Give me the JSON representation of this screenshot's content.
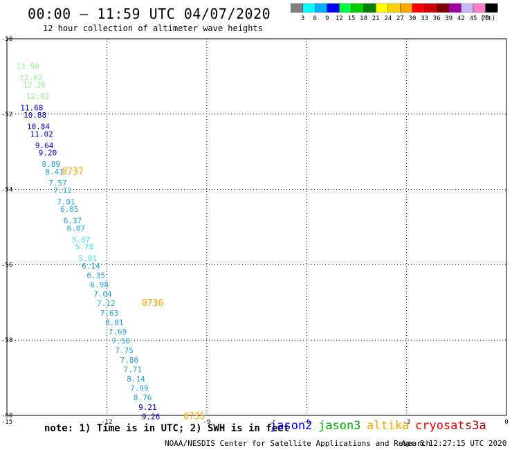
{
  "header": {
    "title": "00:00 – 11:59 UTC 04/07/2020",
    "subtitle": "12 hour collection of altimeter wave heights"
  },
  "colorbar": {
    "colors": [
      "#808080",
      "#00ffff",
      "#00b0ff",
      "#0000ff",
      "#00ff40",
      "#00cc00",
      "#008000",
      "#ffff00",
      "#ffd000",
      "#ffa500",
      "#ff0000",
      "#d00000",
      "#800000",
      "#a000a0",
      "#c8b4ff",
      "#ff80c0",
      "#000000"
    ],
    "labels": [
      "3",
      "6",
      "9",
      "12",
      "15",
      "18",
      "21",
      "24",
      "27",
      "30",
      "33",
      "36",
      "39",
      "42",
      "45",
      "70"
    ],
    "unit": "(ft)"
  },
  "chart_data": {
    "type": "scatter",
    "title": "00:00 – 11:59 UTC 04/07/2020",
    "subtitle": "12 hour collection of altimeter wave heights",
    "xlim": [
      -15,
      0
    ],
    "ylim": [
      -60,
      -50
    ],
    "x_ticks": [
      "-15",
      "-12",
      "-9",
      "-6",
      "-3",
      "0"
    ],
    "y_ticks": [
      "-50",
      "-52",
      "-54",
      "-56",
      "-58",
      "-60"
    ],
    "grid": true,
    "points": [
      {
        "x": -14.72,
        "y": -50.8,
        "label": "13.50",
        "color": "#90ee90"
      },
      {
        "x": -14.62,
        "y": -51.1,
        "label": "12.62",
        "color": "#90ee90"
      },
      {
        "x": -14.52,
        "y": -51.3,
        "label": "12.26",
        "color": "#90ee90"
      },
      {
        "x": -14.42,
        "y": -51.6,
        "label": "12.92",
        "color": "#90ee90"
      },
      {
        "x": -14.6,
        "y": -51.9,
        "label": "11.68",
        "color": "#0000c0"
      },
      {
        "x": -14.5,
        "y": -52.1,
        "label": "10.88",
        "color": "#0000c0"
      },
      {
        "x": -14.4,
        "y": -52.4,
        "label": "10.84",
        "color": "#0000c0"
      },
      {
        "x": -14.3,
        "y": -52.6,
        "label": "11.02",
        "color": "#0000c0"
      },
      {
        "x": -14.15,
        "y": -52.9,
        "label": "9.64",
        "color": "#0000c0"
      },
      {
        "x": -14.05,
        "y": -53.1,
        "label": "9.20",
        "color": "#0000c0"
      },
      {
        "x": -13.95,
        "y": -53.4,
        "label": "8.89",
        "color": "#20a0e0"
      },
      {
        "x": -13.85,
        "y": -53.6,
        "label": "8.41",
        "color": "#20a0e0"
      },
      {
        "x": -13.75,
        "y": -53.9,
        "label": "7.57",
        "color": "#20a0e0"
      },
      {
        "x": -13.6,
        "y": -54.1,
        "label": "7.12",
        "color": "#20a0e0"
      },
      {
        "x": -13.5,
        "y": -54.4,
        "label": "7.01",
        "color": "#20a0e0"
      },
      {
        "x": -13.4,
        "y": -54.6,
        "label": "6.05",
        "color": "#20a0e0"
      },
      {
        "x": -13.3,
        "y": -54.9,
        "label": "6.37",
        "color": "#20a0e0"
      },
      {
        "x": -13.2,
        "y": -55.1,
        "label": "6.07",
        "color": "#20a0e0"
      },
      {
        "x": -13.05,
        "y": -55.4,
        "label": "5.67",
        "color": "#40e0f0"
      },
      {
        "x": -12.95,
        "y": -55.6,
        "label": "5.78",
        "color": "#40e0f0"
      },
      {
        "x": -12.85,
        "y": -55.9,
        "label": "5.81",
        "color": "#40e0f0"
      },
      {
        "x": -12.75,
        "y": -56.1,
        "label": "6.14",
        "color": "#20a0e0"
      },
      {
        "x": -12.6,
        "y": -56.35,
        "label": "6.35",
        "color": "#20a0e0"
      },
      {
        "x": -12.5,
        "y": -56.6,
        "label": "6.98",
        "color": "#20a0e0"
      },
      {
        "x": -12.4,
        "y": -56.85,
        "label": "7.04",
        "color": "#20a0e0"
      },
      {
        "x": -12.3,
        "y": -57.1,
        "label": "7.12",
        "color": "#20a0e0"
      },
      {
        "x": -12.2,
        "y": -57.35,
        "label": "7.63",
        "color": "#20a0e0"
      },
      {
        "x": -12.05,
        "y": -57.6,
        "label": "8.01",
        "color": "#20a0e0"
      },
      {
        "x": -11.95,
        "y": -57.85,
        "label": "7.69",
        "color": "#20a0e0"
      },
      {
        "x": -11.85,
        "y": -58.1,
        "label": "7.50",
        "color": "#20a0e0"
      },
      {
        "x": -11.75,
        "y": -58.35,
        "label": "7.75",
        "color": "#20a0e0"
      },
      {
        "x": -11.6,
        "y": -58.6,
        "label": "7.80",
        "color": "#20a0e0"
      },
      {
        "x": -11.5,
        "y": -58.85,
        "label": "7.71",
        "color": "#20a0e0"
      },
      {
        "x": -11.4,
        "y": -59.1,
        "label": "8.14",
        "color": "#20a0e0"
      },
      {
        "x": -11.3,
        "y": -59.35,
        "label": "7.99",
        "color": "#20a0e0"
      },
      {
        "x": -11.2,
        "y": -59.6,
        "label": "8.76",
        "color": "#20a0e0"
      },
      {
        "x": -11.05,
        "y": -59.85,
        "label": "9.21",
        "color": "#0000c0"
      },
      {
        "x": -10.95,
        "y": -60.1,
        "label": "9.26",
        "color": "#0000c0"
      }
    ],
    "time_labels": [
      {
        "x": -13.35,
        "y": -53.6,
        "label": "0737",
        "color": "#ffa500"
      },
      {
        "x": -10.95,
        "y": -57.1,
        "label": "0736",
        "color": "#ffa500"
      },
      {
        "x": -9.7,
        "y": -60.1,
        "label": "0735",
        "color": "#ffa500"
      }
    ]
  },
  "footer": {
    "note": "note: 1) Time is in UTC; 2) SWH is in feet",
    "satellites": [
      {
        "name": "jason2",
        "color": "#0000ff"
      },
      {
        "name": "jason3",
        "color": "#00aa00"
      },
      {
        "name": "altika",
        "color": "#ffa500"
      },
      {
        "name": "cryosat",
        "color": "#dd0000"
      },
      {
        "name": "s3a",
        "color": "#aa0000"
      }
    ],
    "credit": "NOAA/NESDIS Center for Satellite Applications and Research",
    "timestamp": "Apr  8 12:27:15 UTC 2020"
  }
}
